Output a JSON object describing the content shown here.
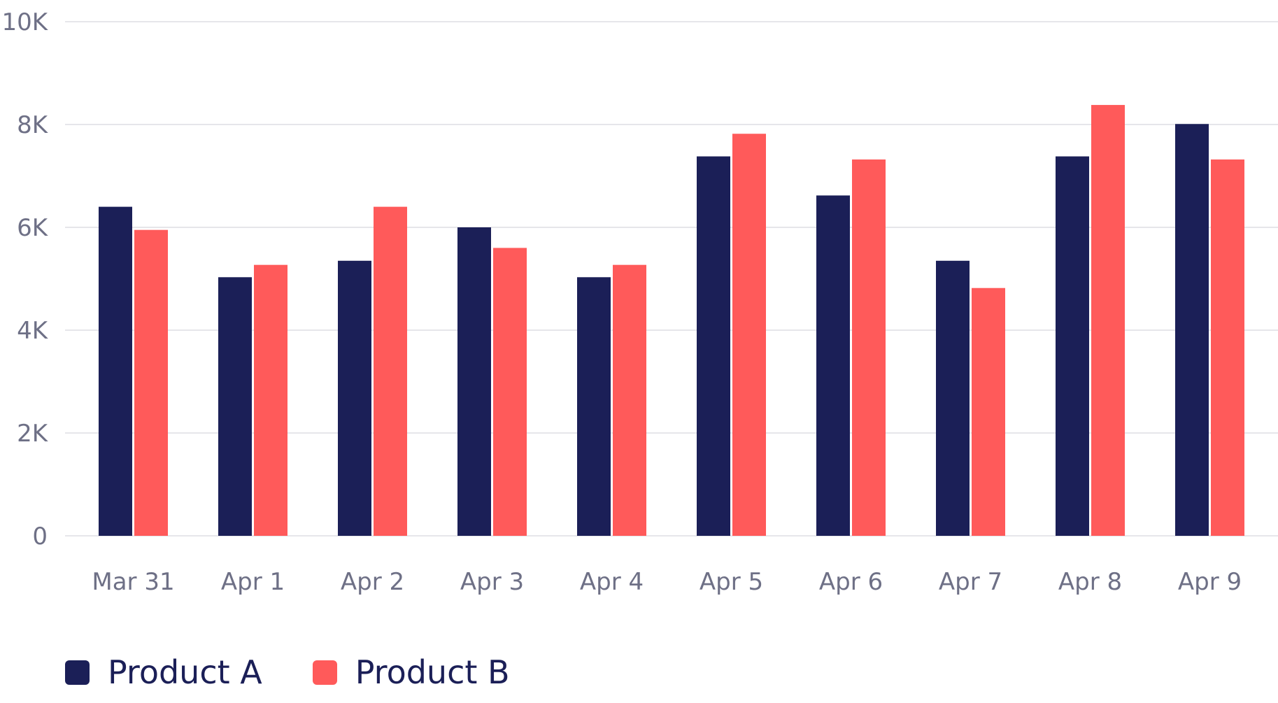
{
  "chart_data": {
    "type": "bar",
    "categories": [
      "Mar 31",
      "Apr 1",
      "Apr 2",
      "Apr 3",
      "Apr 4",
      "Apr 5",
      "Apr 6",
      "Apr 7",
      "Apr 8",
      "Apr 9"
    ],
    "series": [
      {
        "name": "Product A",
        "color": "#1b1f57",
        "values": [
          6400,
          5030,
          5350,
          6000,
          5030,
          7380,
          6620,
          5350,
          7380,
          8010
        ]
      },
      {
        "name": "Product B",
        "color": "#ff5a5a",
        "values": [
          5950,
          5270,
          6400,
          5600,
          5270,
          7820,
          7320,
          4820,
          8380,
          7320
        ]
      }
    ],
    "ylim": [
      0,
      10000
    ],
    "yticks": [
      0,
      2000,
      4000,
      6000,
      8000,
      10000
    ],
    "ytick_labels": [
      "0",
      "2K",
      "4K",
      "6K",
      "8K",
      "10K"
    ],
    "grid": true,
    "legend_position": "bottom-left",
    "title": "",
    "xlabel": "",
    "ylabel": ""
  },
  "style": {
    "grid_color": "#e6e6ea",
    "axis_text_color": "#6e7086",
    "legend_text_color": "#1b1f57"
  }
}
